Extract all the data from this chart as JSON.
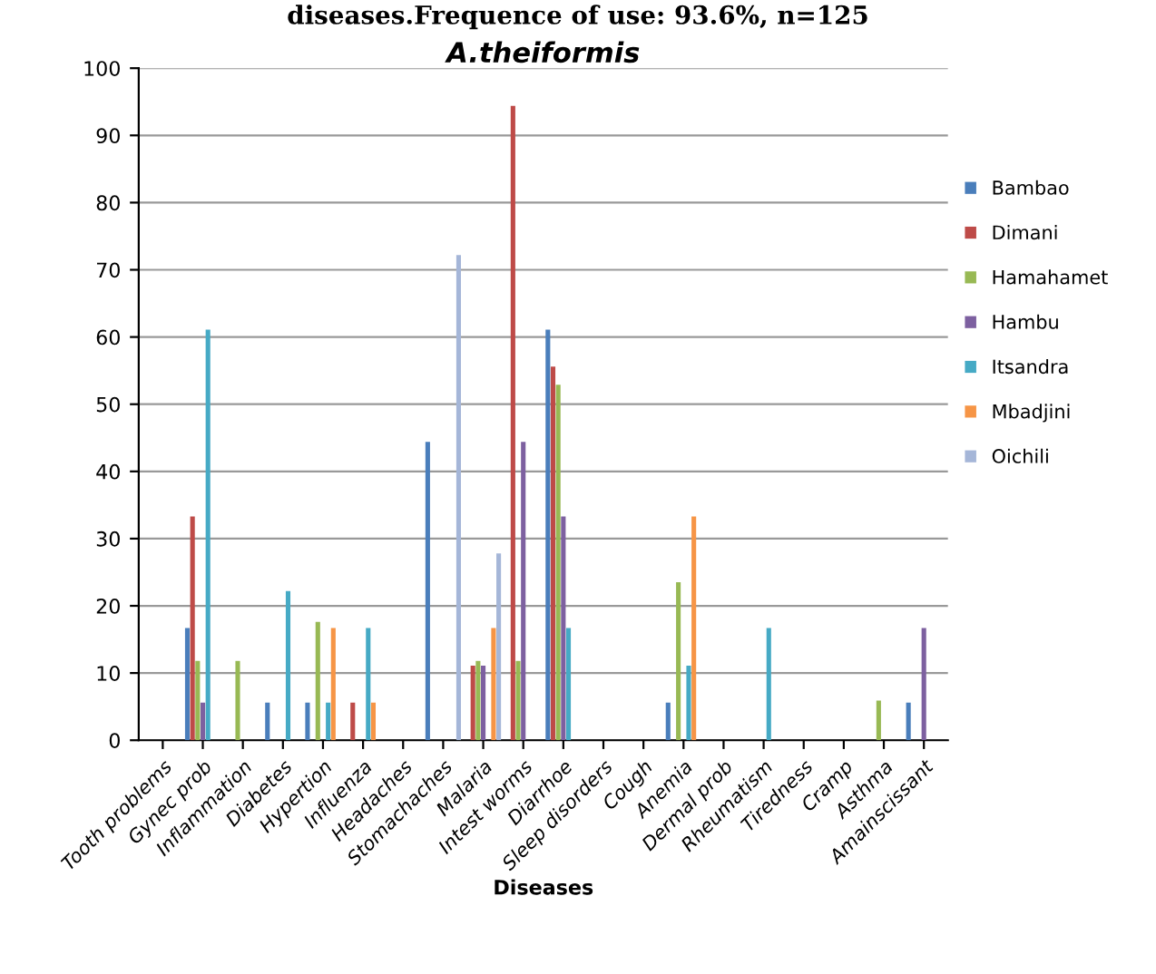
{
  "chart_data": {
    "type": "bar",
    "title": "A.theiformis",
    "xlabel": "Diseases",
    "annotations": [
      "diseases.Frequence of use: 93.6%, n=125"
    ],
    "categories": [
      "Tooth problems",
      "Gynec prob",
      "Inflammation",
      "Diabetes",
      "Hypertion",
      "Influenza",
      "Headaches",
      "Stomachaches",
      "Malaria",
      "Intest worms",
      "Diarrhoe",
      "Sleep disorders",
      "Cough",
      "Anemia",
      "Dermal prob",
      "Rheumatism",
      "Tiredness",
      "Cramp",
      "Asthma",
      "Amainscissant"
    ],
    "series": [
      {
        "name": "Bambao",
        "color": "#4a7ebb",
        "values": [
          null,
          16.7,
          null,
          5.6,
          5.6,
          null,
          null,
          44.4,
          null,
          null,
          61.1,
          null,
          null,
          5.6,
          null,
          null,
          null,
          null,
          null,
          5.6
        ]
      },
      {
        "name": "Dimani",
        "color": "#be4b48",
        "values": [
          null,
          33.3,
          null,
          null,
          null,
          5.6,
          null,
          null,
          11.1,
          94.4,
          55.6,
          null,
          null,
          null,
          null,
          null,
          null,
          null,
          null,
          null
        ]
      },
      {
        "name": "Hamahamet",
        "color": "#98b954",
        "values": [
          null,
          11.8,
          11.8,
          null,
          17.6,
          null,
          null,
          null,
          11.8,
          11.8,
          52.9,
          null,
          null,
          23.5,
          null,
          null,
          null,
          null,
          5.9,
          null
        ]
      },
      {
        "name": "Hambu",
        "color": "#7d60a0",
        "values": [
          null,
          5.6,
          null,
          null,
          null,
          null,
          null,
          null,
          11.1,
          44.4,
          33.3,
          null,
          null,
          null,
          null,
          null,
          null,
          null,
          null,
          16.7
        ]
      },
      {
        "name": "Itsandra",
        "color": "#46aac5",
        "values": [
          null,
          61.1,
          null,
          22.2,
          5.6,
          16.7,
          null,
          null,
          null,
          null,
          16.7,
          null,
          null,
          11.1,
          null,
          16.7,
          null,
          null,
          null,
          null
        ]
      },
      {
        "name": "Mbadjini",
        "color": "#f69546",
        "values": [
          null,
          null,
          null,
          null,
          16.7,
          5.6,
          null,
          null,
          16.7,
          null,
          null,
          null,
          null,
          33.3,
          null,
          null,
          null,
          null,
          null,
          null
        ]
      },
      {
        "name": "Oichili",
        "color": "#a5b6d8",
        "values": [
          null,
          null,
          null,
          null,
          null,
          null,
          null,
          72.2,
          27.8,
          null,
          null,
          null,
          null,
          null,
          null,
          null,
          null,
          null,
          null,
          null
        ]
      }
    ],
    "ylim": [
      0,
      100
    ],
    "yticks": [
      0,
      10,
      20,
      30,
      40,
      50,
      60,
      70,
      80,
      90,
      100
    ],
    "grid": "y",
    "legend": "right"
  }
}
